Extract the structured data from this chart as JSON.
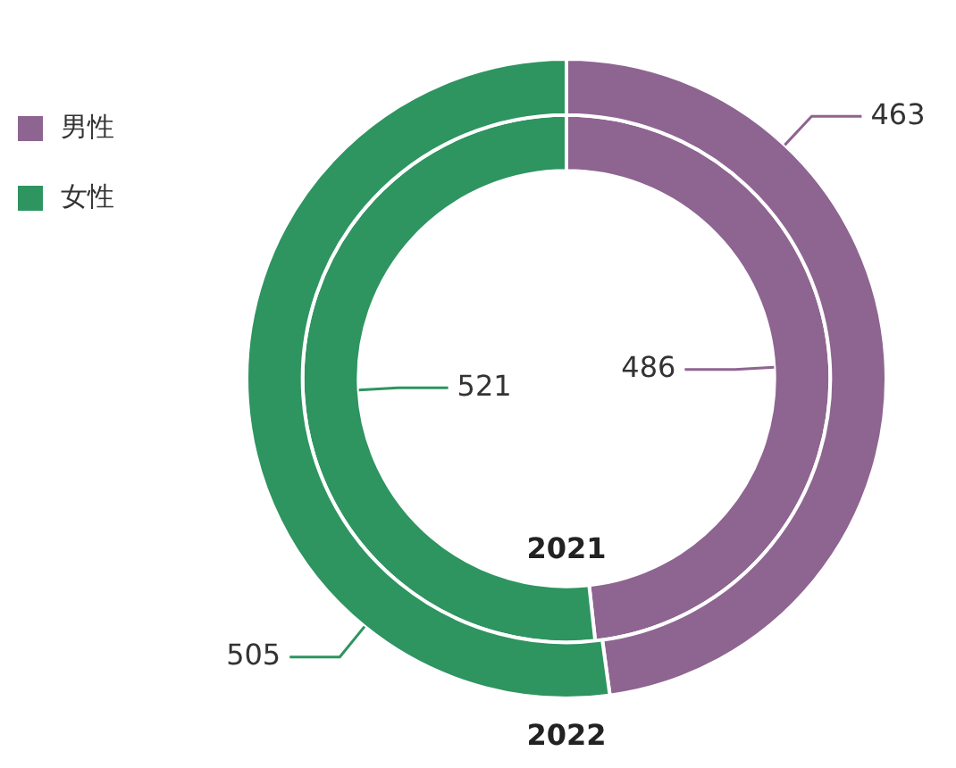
{
  "chart_data": {
    "type": "donut",
    "categories": [
      "男性",
      "女性"
    ],
    "series": [
      {
        "name": "2022",
        "values": [
          463,
          505
        ],
        "colors": [
          "#8e6491",
          "#2e9460"
        ]
      },
      {
        "name": "2021",
        "values": [
          486,
          521
        ],
        "colors": [
          "#8e6491",
          "#2e9460"
        ]
      }
    ],
    "data_labels": true,
    "legend": "top left"
  }
}
